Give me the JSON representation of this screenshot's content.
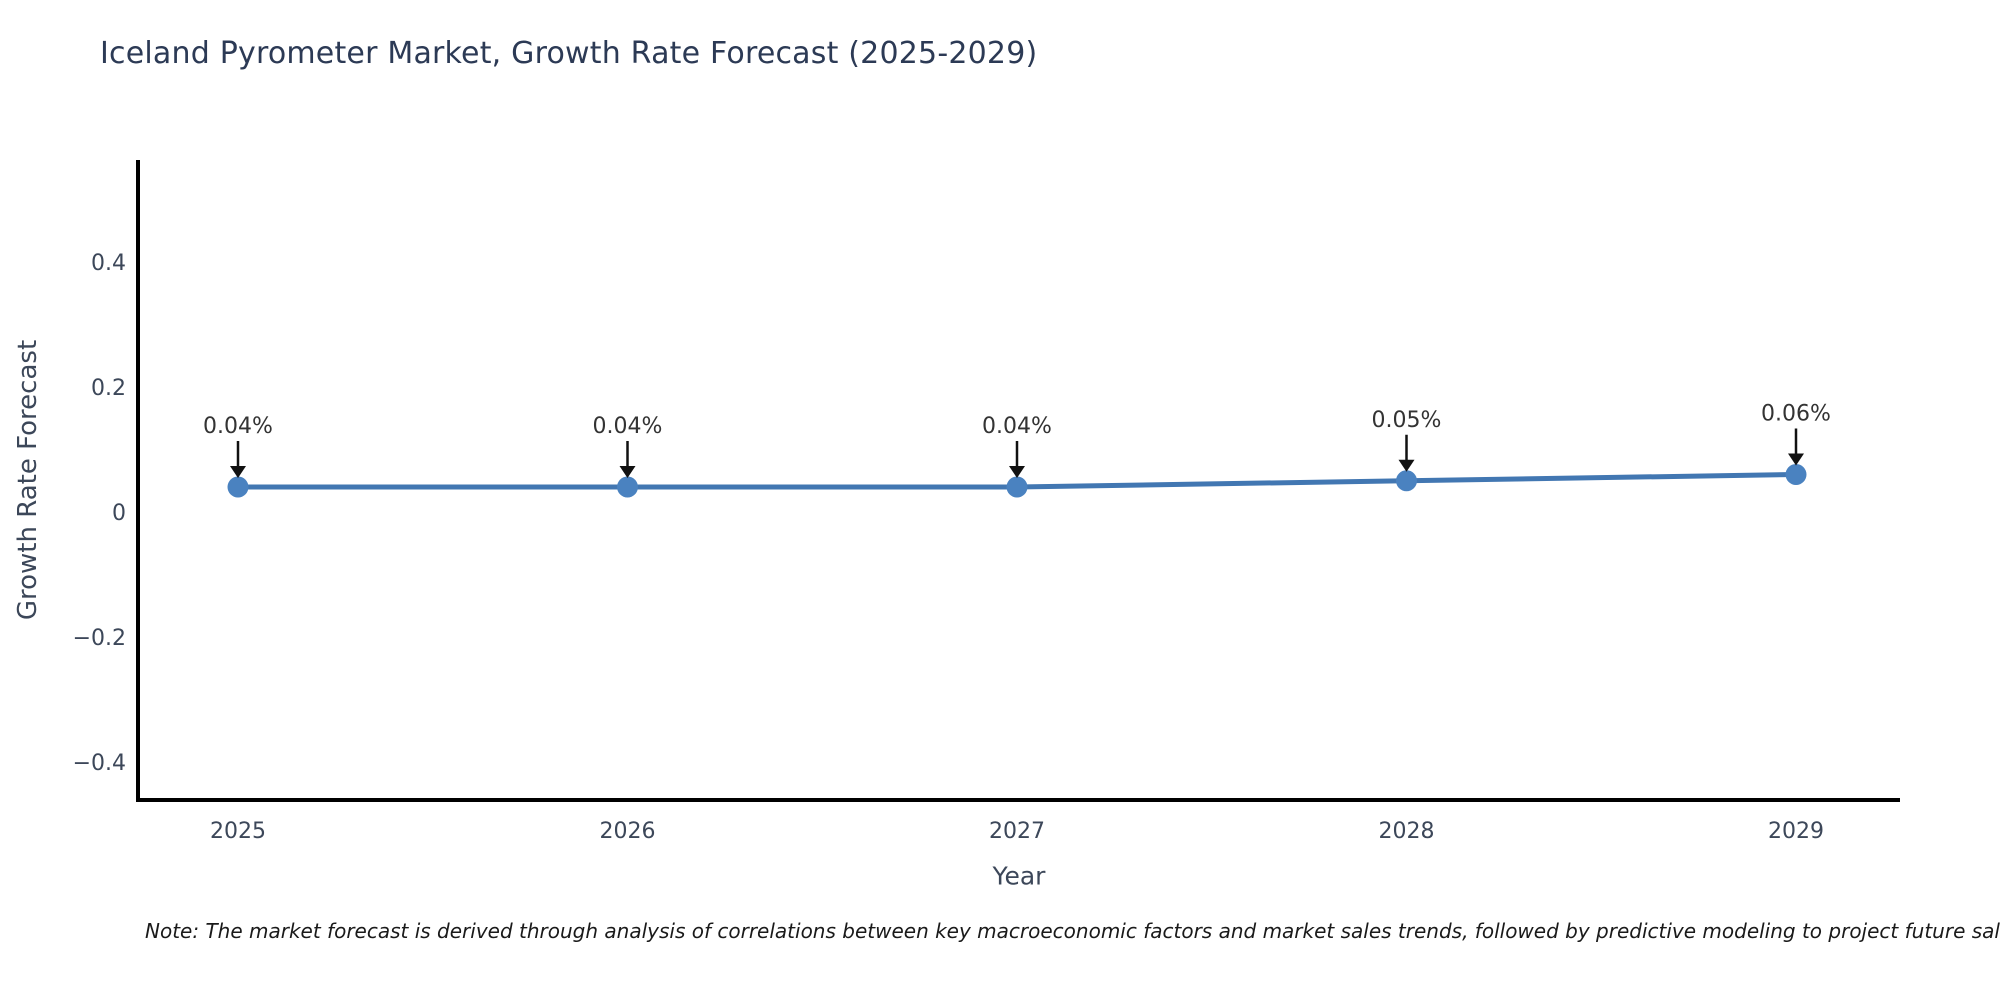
{
  "footnote": "Note: The market forecast is derived through analysis of correlations between key macroeconomic factors and market sales trends, followed by predictive modeling to project future sales trajectories.",
  "chart_data": {
    "type": "line",
    "title": "Iceland Pyrometer Market, Growth Rate Forecast (2025-2029)",
    "xlabel": "Year",
    "ylabel": "Growth Rate Forecast",
    "categories": [
      "2025",
      "2026",
      "2027",
      "2028",
      "2029"
    ],
    "series": [
      {
        "name": "Growth Rate Forecast",
        "values": [
          0.04,
          0.04,
          0.04,
          0.05,
          0.06
        ]
      }
    ],
    "point_labels": [
      "0.04%",
      "0.04%",
      "0.04%",
      "0.05%",
      "0.06%"
    ],
    "annotation_style": "black down arrow from label to marker",
    "ytick_values": [
      0.4,
      0.2,
      0,
      -0.2,
      -0.4
    ],
    "ytick_labels": [
      "0.4",
      "0.2",
      "0",
      "−0.2",
      "−0.4"
    ],
    "ylim": [
      -0.46,
      0.56
    ],
    "xlim": [
      2024.7,
      2029.3
    ],
    "grid": false,
    "legend": false,
    "colors": {
      "line": "#4277b2",
      "marker": "#4a82c0",
      "spine": "#000000",
      "arrow": "#111111",
      "title_text": "#2c3a55",
      "axis_text": "#3c4759",
      "annotation_text": "#333333",
      "note_text": "#1a1a1a",
      "background": "#ffffff"
    }
  }
}
